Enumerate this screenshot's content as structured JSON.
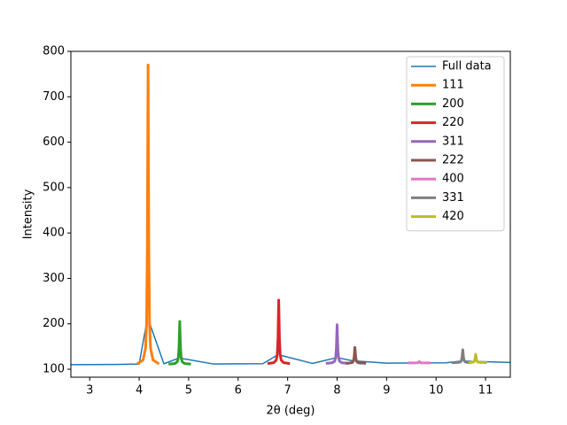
{
  "chart_data": {
    "type": "line",
    "xlabel": "2θ (deg)",
    "ylabel": "Intensity",
    "xlim": [
      2.62,
      11.5
    ],
    "xticks": [
      3,
      4,
      5,
      6,
      7,
      8,
      9,
      10,
      11
    ],
    "ylim": [
      82.5,
      800
    ],
    "yticks": [
      100,
      200,
      300,
      400,
      500,
      600,
      700,
      800
    ],
    "legend": "upper right",
    "series": [
      {
        "name": "Full data",
        "color": "#1f77b4",
        "x": [
          2.62,
          3,
          3.5,
          4.0,
          4.15,
          4.18,
          4.21,
          4.5,
          4.79,
          4.82,
          4.85,
          5.5,
          6,
          6.5,
          6.79,
          6.82,
          6.85,
          7.5,
          7.97,
          8.0,
          8.03,
          8.33,
          8.36,
          8.39,
          9,
          9.63,
          9.66,
          9.69,
          10.2,
          10.51,
          10.54,
          10.57,
          10.77,
          10.8,
          10.83,
          11.5
        ],
        "values": [
          110,
          110.2,
          110.5,
          111.5,
          202,
          770,
          202,
          112,
          124,
          205,
          124,
          111.6,
          111.9,
          112.3,
          131,
          252,
          131,
          112.8,
          125,
          198,
          125,
          118,
          148,
          118,
          113.5,
          114,
          117,
          114,
          114.2,
          118,
          143,
          118,
          117,
          133,
          117,
          115
        ]
      },
      {
        "name": "111",
        "color": "#ff7f0e",
        "x": [
          3.98,
          4.08,
          4.13,
          4.15,
          4.165,
          4.18,
          4.195,
          4.21,
          4.23,
          4.28,
          4.38
        ],
        "values": [
          113.3,
          120.3,
          146.5,
          202,
          368,
          770,
          368,
          202,
          146.5,
          120.3,
          113.3
        ]
      },
      {
        "name": "200",
        "color": "#2ca02c",
        "x": [
          4.62,
          4.72,
          4.77,
          4.79,
          4.805,
          4.82,
          4.835,
          4.85,
          4.87,
          4.92,
          5.02
        ],
        "values": [
          111.5,
          112.5,
          116.3,
          124.2,
          147.9,
          205,
          147.9,
          124.2,
          116.3,
          112.5,
          111.5
        ]
      },
      {
        "name": "220",
        "color": "#d62728",
        "x": [
          6.62,
          6.72,
          6.77,
          6.79,
          6.805,
          6.82,
          6.835,
          6.85,
          6.87,
          6.92,
          7.02
        ],
        "values": [
          112.9,
          114.4,
          120,
          131.7,
          167,
          252,
          167,
          131.7,
          120,
          114.4,
          112.9
        ]
      },
      {
        "name": "311",
        "color": "#9467bd",
        "x": [
          7.8,
          7.9,
          7.95,
          7.97,
          7.985,
          8.0,
          8.015,
          8.03,
          8.05,
          8.1,
          8.2
        ],
        "values": [
          113.3,
          114.2,
          117.6,
          124.7,
          146.2,
          198,
          146.2,
          124.7,
          117.6,
          114.2,
          113.3
        ]
      },
      {
        "name": "222",
        "color": "#8c564b",
        "x": [
          8.2,
          8.26,
          8.31,
          8.33,
          8.345,
          8.36,
          8.375,
          8.39,
          8.41,
          8.46,
          8.56
        ],
        "values": [
          113.3,
          113.7,
          115.1,
          118,
          126.9,
          148,
          126.9,
          118,
          115.1,
          113.7,
          113.3
        ]
      },
      {
        "name": "400",
        "color": "#e377c2",
        "x": [
          9.46,
          9.56,
          9.61,
          9.63,
          9.645,
          9.66,
          9.675,
          9.69,
          9.71,
          9.76,
          9.86
        ],
        "values": [
          113.9,
          113.9,
          114.1,
          114.3,
          115.1,
          117,
          115.1,
          114.3,
          114.1,
          113.9,
          113.9
        ]
      },
      {
        "name": "331",
        "color": "#7f7f7f",
        "x": [
          10.34,
          10.44,
          10.49,
          10.51,
          10.525,
          10.54,
          10.555,
          10.57,
          10.59,
          10.64,
          10.68
        ],
        "values": [
          114.5,
          114.8,
          116,
          118.4,
          125.7,
          143,
          125.7,
          118.4,
          116,
          114.8,
          114.5
        ]
      },
      {
        "name": "420",
        "color": "#bcbd22",
        "x": [
          10.68,
          10.7,
          10.75,
          10.77,
          10.785,
          10.8,
          10.815,
          10.83,
          10.85,
          10.9,
          11.0
        ],
        "values": [
          114.7,
          114.9,
          115.6,
          117.1,
          121.6,
          133,
          121.6,
          117.1,
          115.6,
          114.9,
          114.7
        ]
      }
    ]
  }
}
